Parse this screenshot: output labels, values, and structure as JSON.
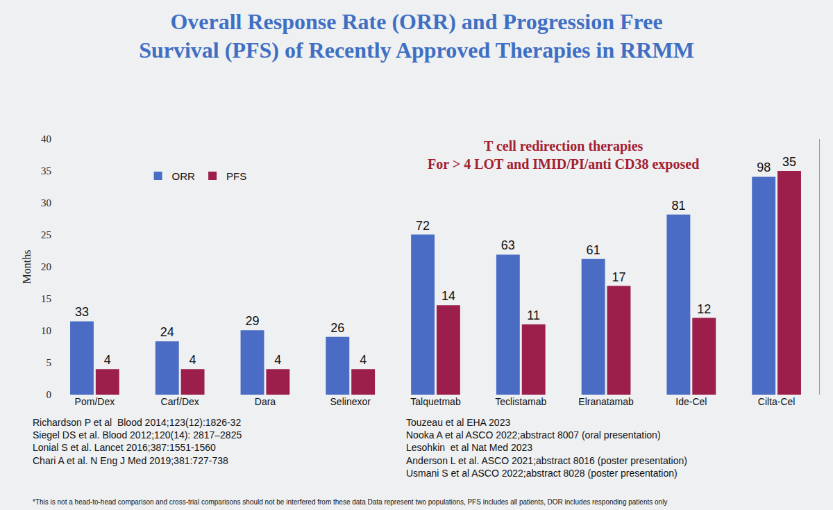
{
  "chart_data": {
    "type": "bar",
    "title": [
      "Overall Response Rate (ORR) and Progression Free",
      "Survival (PFS) of Recently Approved Therapies in RRMM"
    ],
    "ylabel": "Months",
    "categories": [
      "Pom/Dex",
      "Carf/Dex",
      "Dara",
      "Selinexor",
      "Talquetmab",
      "Teclistamab",
      "Elranatamab",
      "Ide-Cel",
      "Cilta-Cel"
    ],
    "series": [
      {
        "name": "ORR",
        "color": "#4a6cc4",
        "axis": "y2",
        "values": [
          33,
          24,
          29,
          26,
          72,
          63,
          61,
          81,
          98
        ]
      },
      {
        "name": "PFS",
        "color": "#9c1f4b",
        "values": [
          4,
          4,
          4,
          4,
          14,
          11,
          17,
          12,
          35
        ]
      }
    ],
    "ylim": [
      0,
      40
    ],
    "yticks": [
      0,
      5,
      10,
      15,
      20,
      25,
      30,
      35,
      40
    ],
    "y2lim": [
      0,
      115
    ],
    "grid": false,
    "legend": "top left",
    "data_labels": true,
    "annotations": [
      "T cell redirection therapies",
      "For > 4 LOT and IMID/PI/anti CD38 exposed"
    ],
    "references": [
      [
        "Richardson P et al  Blood 2014;123(12):1826-32",
        "Siegel DS et al. Blood 2012;120(14): 2817–2825",
        "Lonial S et al. Lancet 2016;387:1551-1560",
        "Chari A et al. N Eng J Med 2019;381:727-738"
      ],
      [
        "Touzeau et al EHA 2023",
        "Nooka A et al ASCO 2022;abstract 8007 (oral presentation)",
        "Lesohkin  et al Nat Med 2023",
        "Anderson L et al. ASCO 2021;abstract 8016 (poster presentation)",
        "Usmani S et al ASCO 2022;abstract 8028 (poster presentation)"
      ]
    ],
    "footnote": "*This is not a head-to-head comparison and cross-trial comparisons should not be interfered from these data Data represent two populations, PFS includes all patients, DOR includes responding patients only"
  }
}
